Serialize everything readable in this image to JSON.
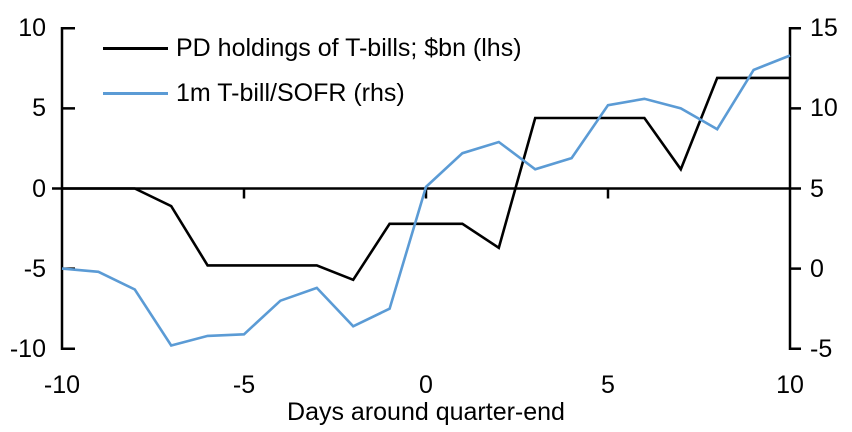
{
  "chart_data": {
    "type": "line",
    "title": "",
    "xlabel": "Days around quarter-end",
    "grid": "off",
    "legend_position": "top-left",
    "zero_line": true,
    "x": [
      -10,
      -9,
      -8,
      -7,
      -6,
      -5,
      -4,
      -3,
      -2,
      -1,
      0,
      1,
      2,
      3,
      4,
      5,
      6,
      7,
      8,
      9,
      10
    ],
    "series": [
      {
        "name": "PD holdings of T-bills; $bn (lhs)",
        "axis": "left",
        "color": "#000000",
        "values": [
          0,
          0,
          0,
          -1.1,
          -4.8,
          -4.8,
          -4.8,
          -4.8,
          -5.7,
          -2.2,
          -2.2,
          -2.2,
          -3.7,
          4.4,
          4.4,
          4.4,
          4.4,
          1.2,
          6.9,
          6.9,
          6.9
        ]
      },
      {
        "name": "1m T-bill/SOFR (rhs)",
        "axis": "right",
        "color": "#5B9BD5",
        "values": [
          0,
          -0.2,
          -1.3,
          -4.8,
          -4.2,
          -4.1,
          -2.0,
          -1.2,
          -3.6,
          -2.5,
          5.1,
          7.2,
          7.9,
          6.2,
          6.9,
          10.2,
          10.6,
          10.0,
          8.7,
          12.4,
          13.3
        ]
      }
    ],
    "left_axis": {
      "min": -10,
      "max": 10,
      "ticks": [
        10,
        5,
        0,
        -5,
        -10
      ],
      "tick_labels": [
        "10",
        "5",
        "0",
        "-5",
        "-10"
      ]
    },
    "right_axis": {
      "min": -5,
      "max": 15,
      "ticks": [
        15,
        10,
        5,
        0,
        -5
      ],
      "tick_labels": [
        "15",
        "10",
        "5",
        "0",
        "-5"
      ]
    },
    "x_axis": {
      "min": -10,
      "max": 10,
      "ticks": [
        -10,
        -5,
        0,
        5,
        10
      ],
      "tick_labels": [
        "-10",
        "-5",
        "0",
        "5",
        "10"
      ],
      "title": "Days around quarter-end"
    }
  },
  "colors": {
    "background": "#FFFFFF",
    "axis": "#000000",
    "text": "#000000",
    "series_1": "#000000",
    "series_2": "#5B9BD5"
  }
}
